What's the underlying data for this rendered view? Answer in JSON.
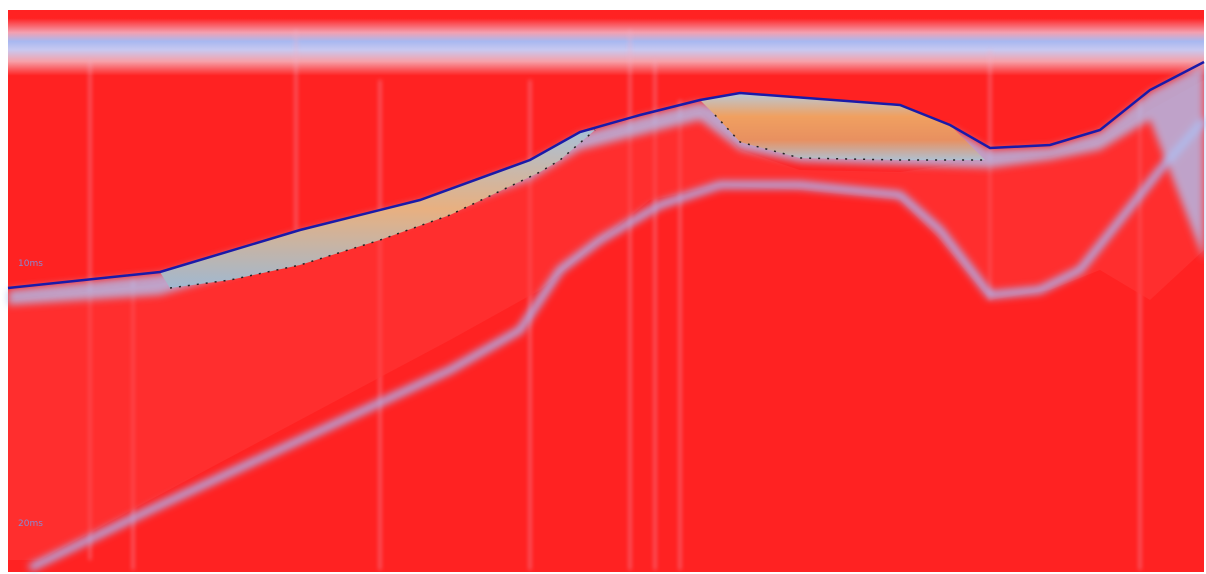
{
  "depth_labels": [
    "10ms",
    "20ms"
  ]
}
